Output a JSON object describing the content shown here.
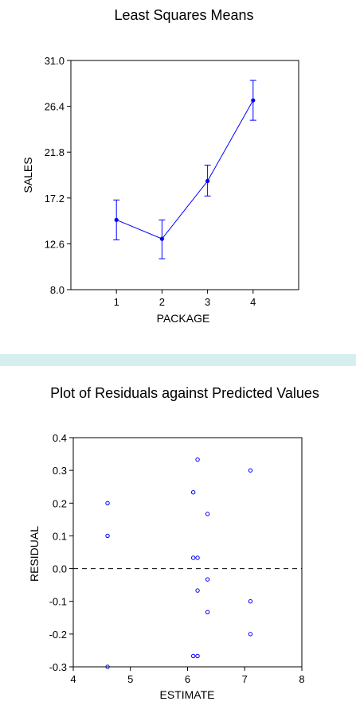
{
  "chart_data": [
    {
      "type": "line",
      "title": "Least Squares Means",
      "xlabel": "PACKAGE",
      "ylabel": "SALES",
      "xlim": [
        0,
        5
      ],
      "ylim": [
        8.0,
        31.0
      ],
      "x_ticks": [
        "1",
        "2",
        "3",
        "4"
      ],
      "y_ticks": [
        "8.0",
        "12.6",
        "17.2",
        "21.8",
        "26.4",
        "31.0"
      ],
      "grid": false,
      "series": [
        {
          "x": [
            1,
            2,
            3,
            4
          ],
          "values": [
            15.0,
            13.1,
            18.9,
            27.0
          ],
          "error_low": [
            13.0,
            11.1,
            17.4,
            25.0
          ],
          "error_high": [
            17.0,
            15.0,
            20.5,
            29.0
          ],
          "color": "#0000ff"
        }
      ]
    },
    {
      "type": "scatter",
      "title": "Plot of Residuals against Predicted Values",
      "xlabel": "ESTIMATE",
      "ylabel": "RESIDUAL",
      "xlim": [
        4,
        8
      ],
      "ylim": [
        -0.3,
        0.4
      ],
      "x_ticks": [
        "4",
        "5",
        "6",
        "7",
        "8"
      ],
      "y_ticks": [
        "-0.3",
        "-0.2",
        "-0.1",
        "0.0",
        "0.1",
        "0.2",
        "0.3",
        "0.4"
      ],
      "reference_line": 0.0,
      "grid": false,
      "color": "#0000ff",
      "points": [
        {
          "x": 4.6,
          "y": 0.2
        },
        {
          "x": 4.6,
          "y": 0.1
        },
        {
          "x": 4.6,
          "y": -0.3
        },
        {
          "x": 6.1,
          "y": 0.233
        },
        {
          "x": 6.1,
          "y": 0.033
        },
        {
          "x": 6.1,
          "y": -0.267
        },
        {
          "x": 6.175,
          "y": 0.333
        },
        {
          "x": 6.175,
          "y": 0.033
        },
        {
          "x": 6.175,
          "y": -0.067
        },
        {
          "x": 6.175,
          "y": -0.267
        },
        {
          "x": 6.35,
          "y": 0.167
        },
        {
          "x": 6.35,
          "y": -0.033
        },
        {
          "x": 6.35,
          "y": -0.133
        },
        {
          "x": 7.1,
          "y": 0.3
        },
        {
          "x": 7.1,
          "y": -0.1
        },
        {
          "x": 7.1,
          "y": -0.2
        }
      ]
    }
  ]
}
